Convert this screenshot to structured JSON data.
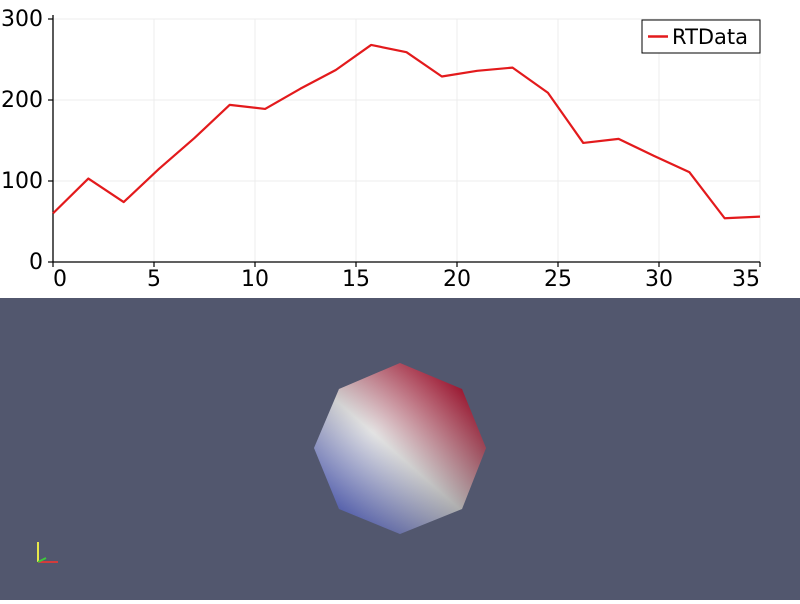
{
  "chart_data": {
    "type": "line",
    "title": "",
    "xlabel": "",
    "ylabel": "",
    "xlim": [
      0,
      35
    ],
    "ylim": [
      0,
      300
    ],
    "xticks": [
      0,
      5,
      10,
      15,
      20,
      25,
      30,
      35
    ],
    "yticks": [
      0,
      100,
      200,
      300
    ],
    "grid": true,
    "legend_position": "top-right",
    "series": [
      {
        "name": "RTData",
        "color": "#e31a1c",
        "x": [
          0,
          1.75,
          3.5,
          5.25,
          7,
          8.75,
          10.5,
          12.25,
          14,
          15.75,
          17.5,
          19.25,
          21,
          22.75,
          24.5,
          26.25,
          28,
          29.75,
          31.5,
          33.25,
          35
        ],
        "y": [
          60,
          103,
          74,
          115,
          153,
          194,
          189,
          214,
          237,
          268,
          259,
          229,
          236,
          240,
          209,
          147,
          152,
          131,
          111,
          54,
          56
        ]
      }
    ]
  },
  "render_view": {
    "background": "#52576e",
    "object": "sphere-octagon",
    "colormap": [
      "#3b4cc0",
      "#dddddd",
      "#b40426"
    ]
  }
}
